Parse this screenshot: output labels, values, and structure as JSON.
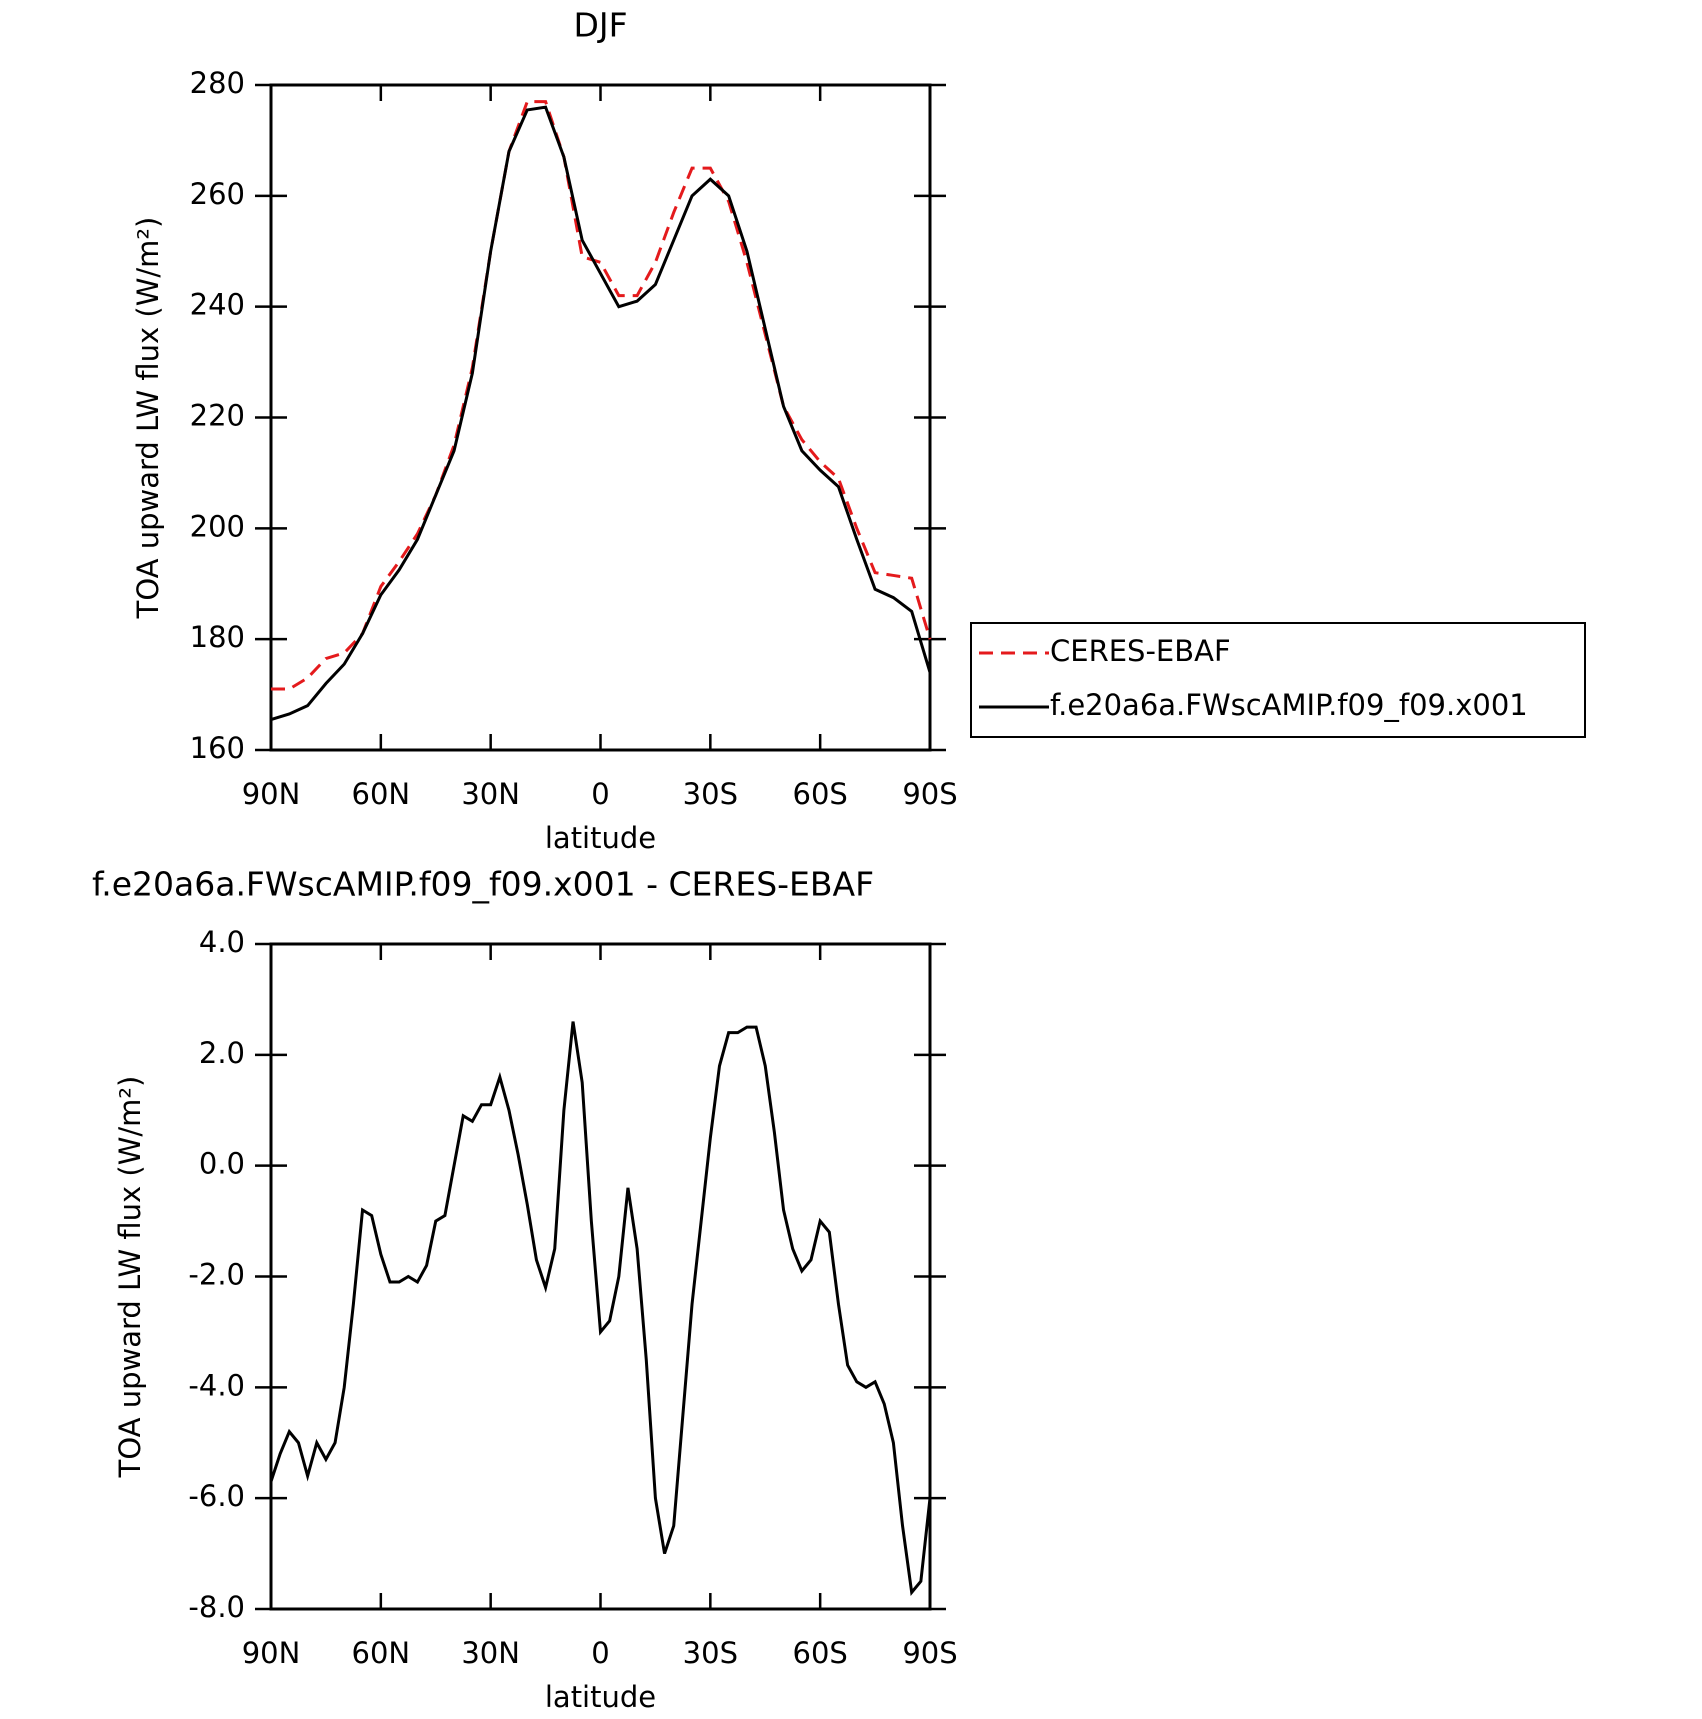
{
  "chart_data": [
    {
      "type": "line",
      "title": "DJF",
      "xlabel": "latitude",
      "ylabel": "TOA upward LW flux (W/m²)",
      "x": [
        90,
        85,
        80,
        75,
        70,
        65,
        60,
        55,
        50,
        45,
        40,
        35,
        30,
        25,
        20,
        15,
        10,
        5,
        0,
        -5,
        -10,
        -15,
        -20,
        -25,
        -30,
        -35,
        -40,
        -45,
        -50,
        -55,
        -60,
        -65,
        -70,
        -75,
        -80,
        -85,
        -90
      ],
      "series": [
        {
          "name": "CERES-EBAF",
          "color": "#e41a1c",
          "dash": true,
          "values": [
            171,
            171,
            173,
            176.5,
            177.5,
            181,
            189.5,
            194,
            199,
            206,
            215,
            229,
            250,
            268,
            277,
            277,
            267,
            249,
            248,
            242,
            242,
            248,
            257,
            265,
            265,
            259,
            248,
            235,
            222,
            216,
            212,
            209,
            200,
            192,
            191.5,
            191,
            180
          ]
        },
        {
          "name": "f.e20a6a.FWscAMIP.f09_f09.x001",
          "color": "#000000",
          "dash": false,
          "values": [
            165.5,
            166.5,
            168,
            172,
            175.5,
            181,
            188,
            192.5,
            198,
            206,
            214,
            228,
            250,
            268,
            275.5,
            276,
            267,
            252,
            246,
            240,
            241,
            244,
            252,
            260,
            263,
            260,
            250,
            236,
            222,
            214,
            210.5,
            207.5,
            198,
            189,
            187.5,
            185,
            174
          ]
        }
      ],
      "xlim": [
        90,
        -90
      ],
      "xticks": [
        {
          "value": 90,
          "label": "90N"
        },
        {
          "value": 60,
          "label": "60N"
        },
        {
          "value": 30,
          "label": "30N"
        },
        0,
        {
          "value": -30,
          "label": "30S"
        },
        {
          "value": -60,
          "label": "60S"
        },
        {
          "value": -90,
          "label": "90S"
        }
      ],
      "ylim": [
        160,
        280
      ],
      "yticks": [
        160,
        180,
        200,
        220,
        240,
        260,
        280
      ],
      "legend": "right"
    },
    {
      "type": "line",
      "title": "f.e20a6a.FWscAMIP.f09_f09.x001 - CERES-EBAF",
      "xlabel": "latitude",
      "ylabel": "TOA upward LW flux (W/m²)",
      "x": [
        90,
        87.5,
        85,
        82.5,
        80,
        77.5,
        75,
        72.5,
        70,
        67.5,
        65,
        62.5,
        60,
        57.5,
        55,
        52.5,
        50,
        47.5,
        45,
        42.5,
        40,
        37.5,
        35,
        32.5,
        30,
        27.5,
        25,
        22.5,
        20,
        17.5,
        15,
        12.5,
        10,
        7.5,
        5,
        2.5,
        0,
        -2.5,
        -5,
        -7.5,
        -10,
        -12.5,
        -15,
        -17.5,
        -20,
        -22.5,
        -25,
        -27.5,
        -30,
        -32.5,
        -35,
        -37.5,
        -40,
        -42.5,
        -45,
        -47.5,
        -50,
        -52.5,
        -55,
        -57.5,
        -60,
        -62.5,
        -65,
        -67.5,
        -70,
        -72.5,
        -75,
        -77.5,
        -80,
        -82.5,
        -85,
        -87.5,
        -90
      ],
      "values": [
        -5.7,
        -5.2,
        -4.8,
        -5.0,
        -5.6,
        -5.0,
        -5.3,
        -5.0,
        -4.0,
        -2.5,
        -0.8,
        -0.9,
        -1.6,
        -2.1,
        -2.1,
        -2.0,
        -2.1,
        -1.8,
        -1.0,
        -0.9,
        0.0,
        0.9,
        0.8,
        1.1,
        1.1,
        1.6,
        1.0,
        0.2,
        -0.7,
        -1.7,
        -2.2,
        -1.5,
        1.0,
        2.6,
        1.5,
        -1.0,
        -3.0,
        -2.8,
        -2.0,
        -0.4,
        -1.5,
        -3.5,
        -6.0,
        -7.0,
        -6.5,
        -4.5,
        -2.5,
        -1.0,
        0.5,
        1.8,
        2.4,
        2.4,
        2.5,
        2.5,
        1.8,
        0.6,
        -0.8,
        -1.5,
        -1.9,
        -1.7,
        -1.0,
        -1.2,
        -2.5,
        -3.6,
        -3.9,
        -4.0,
        -3.9,
        -4.3,
        -5.0,
        -6.5,
        -7.7,
        -7.5,
        -6.0
      ],
      "color": "#000000",
      "xlim": [
        90,
        -90
      ],
      "xticks": [
        {
          "value": 90,
          "label": "90N"
        },
        {
          "value": 60,
          "label": "60N"
        },
        {
          "value": 30,
          "label": "30N"
        },
        0,
        {
          "value": -30,
          "label": "30S"
        },
        {
          "value": -60,
          "label": "60S"
        },
        {
          "value": -90,
          "label": "90S"
        }
      ],
      "ylim": [
        -8,
        4
      ],
      "yticks": [
        {
          "value": -8,
          "label": "-8.0"
        },
        {
          "value": -6,
          "label": "-6.0"
        },
        {
          "value": -4,
          "label": "-4.0"
        },
        {
          "value": -2,
          "label": "-2.0"
        },
        {
          "value": 0,
          "label": "0.0"
        },
        {
          "value": 2,
          "label": "2.0"
        },
        {
          "value": 4,
          "label": "4.0"
        }
      ]
    }
  ]
}
